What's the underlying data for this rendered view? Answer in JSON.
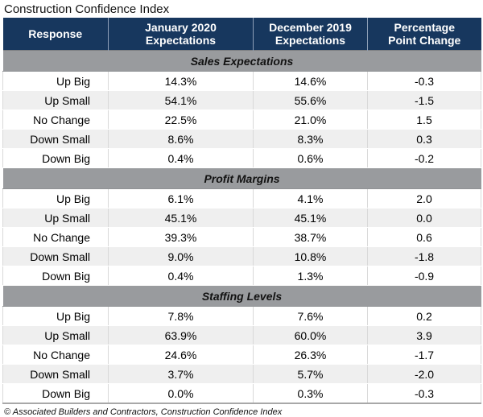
{
  "title": "Construction Confidence Index",
  "footer_note": "© Associated Builders and Contractors, Construction Confidence Index",
  "colors": {
    "header_bg": "#17375e",
    "header_text": "#ffffff",
    "section_band_bg": "#999b9e",
    "row_alt_bg": "#efefef",
    "grid_line": "#d9d9d9"
  },
  "table_header": {
    "col1": "Response",
    "col2": "January 2020\nExpectations",
    "col3": "December 2019\nExpectations",
    "col4": "Percentage\nPoint Change"
  },
  "chart_data": {
    "type": "table",
    "title": "Construction Confidence Index",
    "columns": [
      "Response",
      "January 2020 Expectations",
      "December 2019 Expectations",
      "Percentage Point Change"
    ],
    "sections": [
      {
        "name": "Sales Expectations",
        "rows": [
          [
            "Up Big",
            "14.3%",
            "14.6%",
            "-0.3"
          ],
          [
            "Up Small",
            "54.1%",
            "55.6%",
            "-1.5"
          ],
          [
            "No Change",
            "22.5%",
            "21.0%",
            "1.5"
          ],
          [
            "Down Small",
            "8.6%",
            "8.3%",
            "0.3"
          ],
          [
            "Down Big",
            "0.4%",
            "0.6%",
            "-0.2"
          ]
        ]
      },
      {
        "name": "Profit Margins",
        "rows": [
          [
            "Up Big",
            "6.1%",
            "4.1%",
            "2.0"
          ],
          [
            "Up Small",
            "45.1%",
            "45.1%",
            "0.0"
          ],
          [
            "No Change",
            "39.3%",
            "38.7%",
            "0.6"
          ],
          [
            "Down Small",
            "9.0%",
            "10.8%",
            "-1.8"
          ],
          [
            "Down Big",
            "0.4%",
            "1.3%",
            "-0.9"
          ]
        ]
      },
      {
        "name": "Staffing Levels",
        "rows": [
          [
            "Up Big",
            "7.8%",
            "7.6%",
            "0.2"
          ],
          [
            "Up Small",
            "63.9%",
            "60.0%",
            "3.9"
          ],
          [
            "No Change",
            "24.6%",
            "26.3%",
            "-1.7"
          ],
          [
            "Down Small",
            "3.7%",
            "5.7%",
            "-2.0"
          ],
          [
            "Down Big",
            "0.0%",
            "0.3%",
            "-0.3"
          ]
        ]
      }
    ],
    "source_note": "© Associated Builders and Contractors, Construction Confidence Index"
  }
}
